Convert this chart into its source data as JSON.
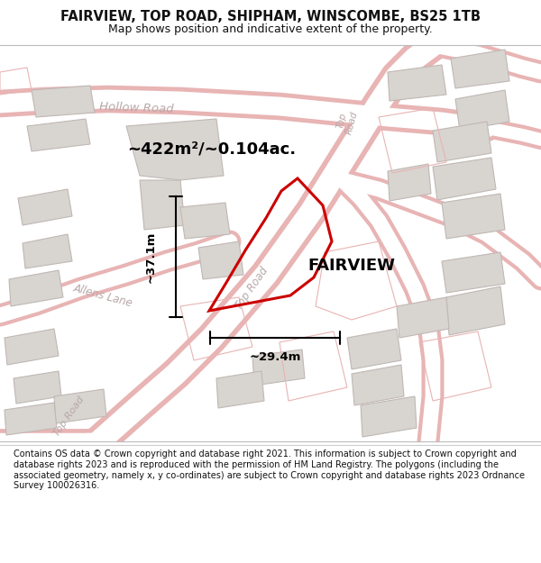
{
  "title": "FAIRVIEW, TOP ROAD, SHIPHAM, WINSCOMBE, BS25 1TB",
  "subtitle": "Map shows position and indicative extent of the property.",
  "footer": "Contains OS data © Crown copyright and database right 2021. This information is subject to Crown copyright and database rights 2023 and is reproduced with the permission of HM Land Registry. The polygons (including the associated geometry, namely x, y co-ordinates) are subject to Crown copyright and database rights 2023 Ordnance Survey 100026316.",
  "property_name": "FAIRVIEW",
  "area_text": "~422m²/~0.104ac.",
  "width_text": "~29.4m",
  "height_text": "~37.1m",
  "map_bg": "#f2eeeb",
  "road_pink": "#e8b4b4",
  "road_white": "#ffffff",
  "building_fill": "#d8d4d0",
  "building_stroke": "#c0b8b4",
  "property_stroke": "#cc0000",
  "road_label_color": "#b8a8a8",
  "title_color": "#111111",
  "footer_color": "#111111"
}
